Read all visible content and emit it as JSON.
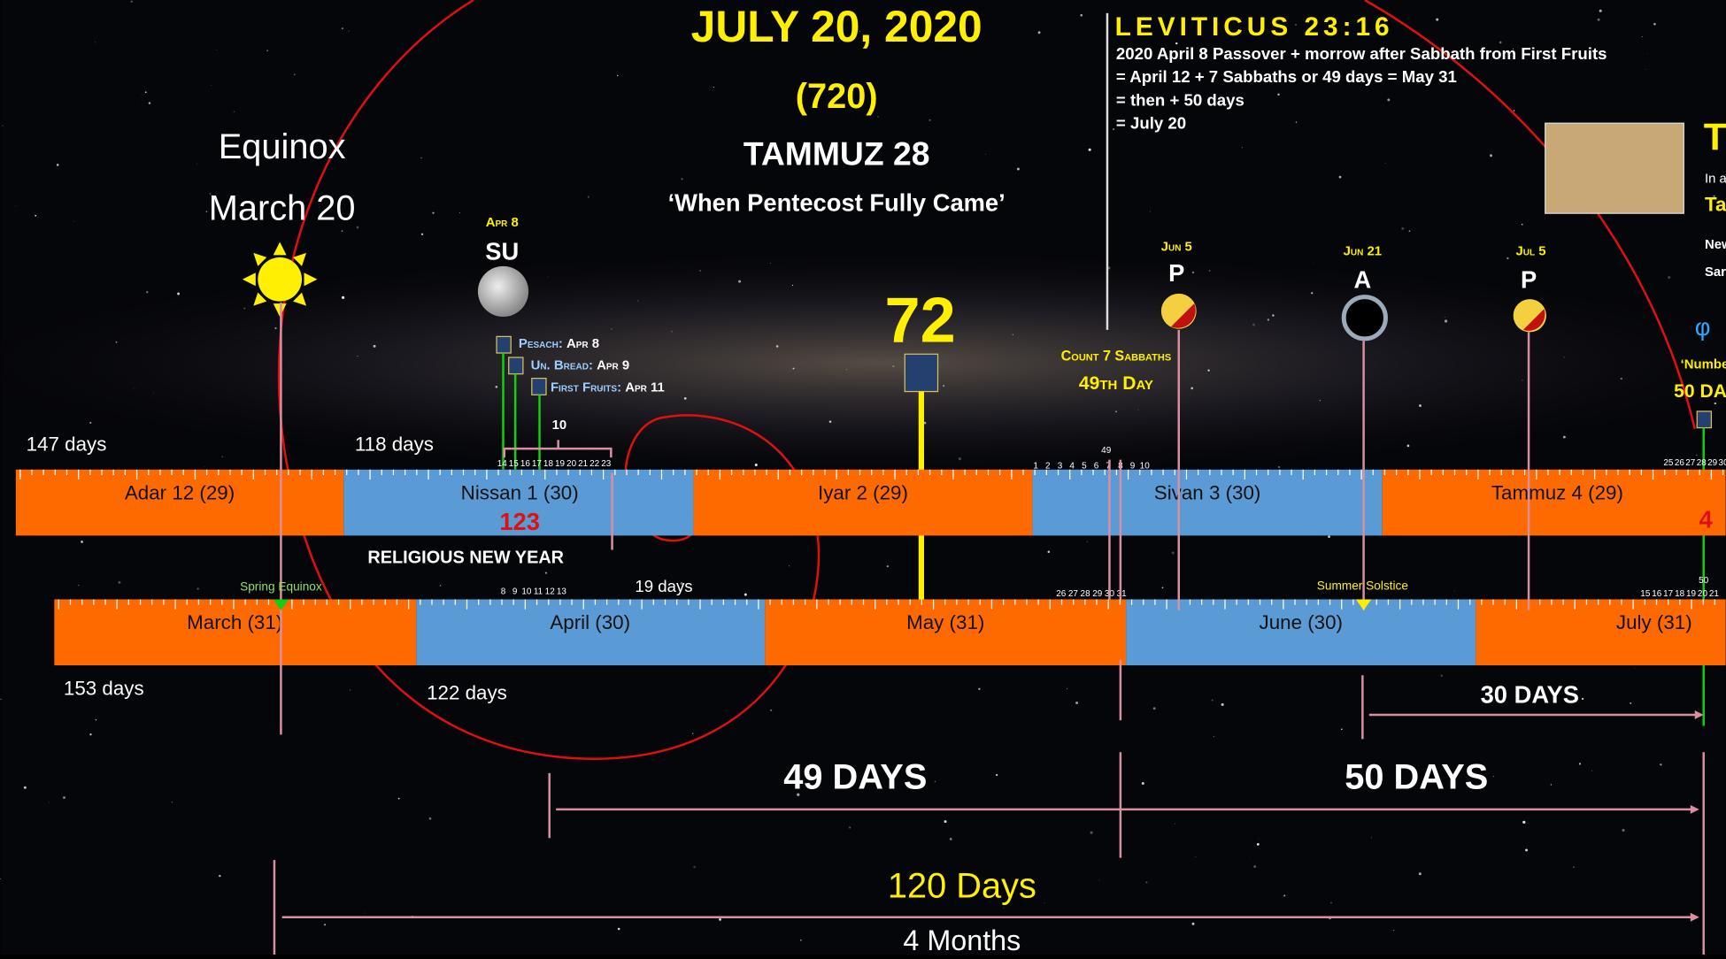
{
  "header": {
    "title": "JULY 20, 2020",
    "code": "(720)",
    "hebrew_date": "TAMMUZ 28",
    "subtitle": "‘When Pentecost Fully Came’"
  },
  "equinox": {
    "line1": "Equinox",
    "line2": "March 20"
  },
  "scripture": {
    "title": "LEVITICUS 23:16",
    "lines": [
      "2020 April 8 Passover + morrow after Sabbath from First Fruits",
      "= April 12 + 7 Sabbaths or 49 days = May 31",
      "= then + 50 days",
      "= July 20"
    ]
  },
  "moons": [
    {
      "date": "Apr 8",
      "label": "SU"
    },
    {
      "date": "Jun 5",
      "label": "P"
    },
    {
      "date": "Jun 21",
      "label": "A"
    },
    {
      "date": "Jul 5",
      "label": "P"
    }
  ],
  "feasts": [
    {
      "name": "Pesach:",
      "date": "Apr 8"
    },
    {
      "name": "Un. Bread:",
      "date": "Apr 9"
    },
    {
      "name": "First Fruits:",
      "date": "Apr 11"
    }
  ],
  "center": {
    "number": "72",
    "count": "Count 7 Sabbaths",
    "day": "49th Day"
  },
  "right_edge": {
    "title": "T",
    "line1": "In a",
    "line2": "Ta",
    "line3": "New",
    "line4": "Sar",
    "phi": "φ",
    "numbers": "‘Numbe",
    "days": "50 DA"
  },
  "hebrew_months": [
    {
      "label": "Adar 12 (29)",
      "color": "#ff6a00"
    },
    {
      "label": "Nissan 1 (30)",
      "color": "#5b9bd5"
    },
    {
      "label": "Iyar 2 (29)",
      "color": "#ff6a00"
    },
    {
      "label": "Sivan 3 (30)",
      "color": "#5b9bd5"
    },
    {
      "label": "Tammuz 4 (29)",
      "color": "#ff6a00"
    }
  ],
  "gregorian_months": [
    {
      "label": "March (31)",
      "color": "#ff6a00"
    },
    {
      "label": "April (30)",
      "color": "#5b9bd5"
    },
    {
      "label": "May (31)",
      "color": "#ff6a00"
    },
    {
      "label": "June (30)",
      "color": "#5b9bd5"
    },
    {
      "label": "July (31)",
      "color": "#ff6a00"
    }
  ],
  "day_ticks": {
    "nissan": [
      "14",
      "15",
      "16",
      "17",
      "18",
      "19",
      "20",
      "21",
      "22",
      "23"
    ],
    "april": [
      "8",
      "9",
      "10",
      "11",
      "12",
      "13"
    ],
    "sivan": [
      "1",
      "2",
      "3",
      "4",
      "5",
      "6",
      "7",
      "8",
      "9",
      "10"
    ],
    "may": [
      "26",
      "27",
      "28",
      "29",
      "30",
      "31"
    ],
    "july": [
      "15",
      "16",
      "17",
      "18",
      "19",
      "20",
      "21"
    ],
    "tammuz": [
      "25",
      "26",
      "27",
      "28",
      "29",
      "30"
    ]
  },
  "labels": {
    "d147": "147 days",
    "d118": "118 days",
    "d153": "153 days",
    "d122": "122 days",
    "d19": "19 days",
    "ten": "10",
    "n123": "123",
    "n4": "4",
    "religious": "RELIGIOUS NEW YEAR",
    "spring": "Spring Equinox",
    "summer": "Summer Solstice",
    "n49": "49",
    "n50": "50"
  },
  "spans": {
    "d30": "30 DAYS",
    "d49": "49 DAYS",
    "d50": "50 DAYS",
    "d120": "120 Days",
    "months4": "4 Months"
  }
}
